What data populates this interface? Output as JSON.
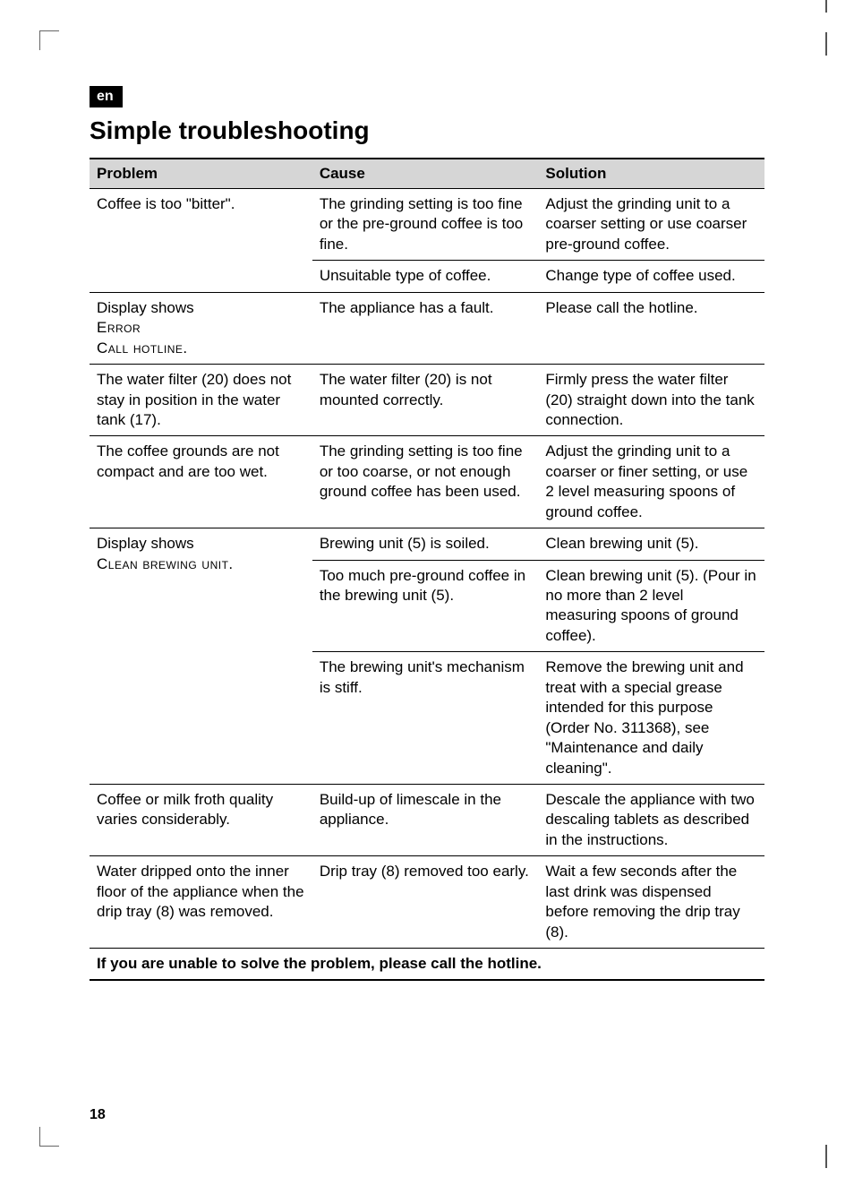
{
  "lang_tag": "en",
  "title": "Simple troubleshooting",
  "page_number": "18",
  "headers": {
    "problem": "Problem",
    "cause": "Cause",
    "solution": "Solution"
  },
  "rows": {
    "bitter": {
      "problem": "Coffee is too \"bitter\".",
      "cause1": "The grinding setting is too fine or the pre-ground cof­fee is too fine.",
      "solution1": "Adjust the grinding unit to a coarser setting or use coars­er pre-ground coffee.",
      "cause2": "Unsuitable type of coffee.",
      "solution2": "Change type of coffee used."
    },
    "error": {
      "problem_l1": "Display shows",
      "problem_l2": "Error",
      "problem_l3": "Call hotline.",
      "cause": "The appliance has a fault.",
      "solution": "Please call the hotline."
    },
    "filter": {
      "problem": "The water filter (20) does not stay in position in the water tank (17).",
      "cause": "The water filter (20) is not mounted correctly.",
      "solution": "Firmly press the water filter (20) straight down into the tank connection."
    },
    "grounds": {
      "problem": "The coffee grounds are not compact and are too wet.",
      "cause": "The grinding setting is too fine or too coarse, or not enough ground coffee has been used.",
      "solution": "Adjust the grinding unit to a coarser or finer setting, or use 2 level measuring spoons of ground coffee."
    },
    "clean": {
      "problem_l1": "Display shows",
      "problem_l2": "Clean brewing unit.",
      "cause1": "Brewing unit (5) is soiled.",
      "solution1": "Clean brewing unit (5).",
      "cause2": "Too much pre-ground cof­fee in the brewing unit (5).",
      "solution2": "Clean brewing unit (5). (Pour in no more than 2 level measuring spoons of ground coffee).",
      "cause3": "The brewing unit's mechanism is stiff.",
      "solution3": "Remove the brewing unit and treat with a special grease intended for this pur­pose (Order No. 311368), see \"Maintenance and daily cleaning\"."
    },
    "froth": {
      "problem": "Coffee or milk froth quality varies considerably.",
      "cause": "Build-up of limescale in the appliance.",
      "solution": "Descale the appliance with two descaling tablets as described in the instructions."
    },
    "drip": {
      "problem": "Water dripped onto the in­ner floor of the appliance when the drip tray (8) was removed.",
      "cause": "Drip tray (8) removed too early.",
      "solution": "Wait a few seconds after the last drink was dispensed before removing the drip tray (8)."
    }
  },
  "footer_note": "If you are unable to solve the problem, please call the hotline."
}
